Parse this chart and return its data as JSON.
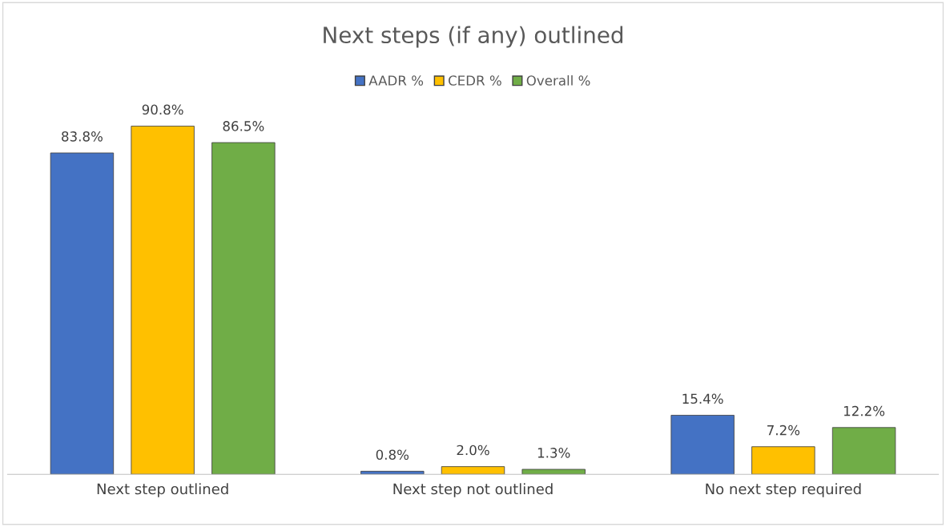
{
  "chart_data": {
    "type": "bar",
    "title": "Next steps (if any) outlined",
    "categories": [
      "Next step outlined",
      "Next step not outlined",
      "No next step required"
    ],
    "series": [
      {
        "name": "AADR %",
        "color": "#4472c4",
        "values": [
          83.8,
          0.8,
          15.4
        ],
        "value_labels": [
          "83.8%",
          "0.8%",
          "15.4%"
        ]
      },
      {
        "name": "CEDR %",
        "color": "#ffc000",
        "values": [
          90.8,
          2.0,
          7.2
        ],
        "value_labels": [
          "90.8%",
          "2.0%",
          "7.2%"
        ]
      },
      {
        "name": "Overall %",
        "color": "#70ad47",
        "values": [
          86.5,
          1.3,
          12.2
        ],
        "value_labels": [
          "86.5%",
          "1.3%",
          "12.2%"
        ]
      }
    ],
    "legend": "top",
    "grid": false
  }
}
